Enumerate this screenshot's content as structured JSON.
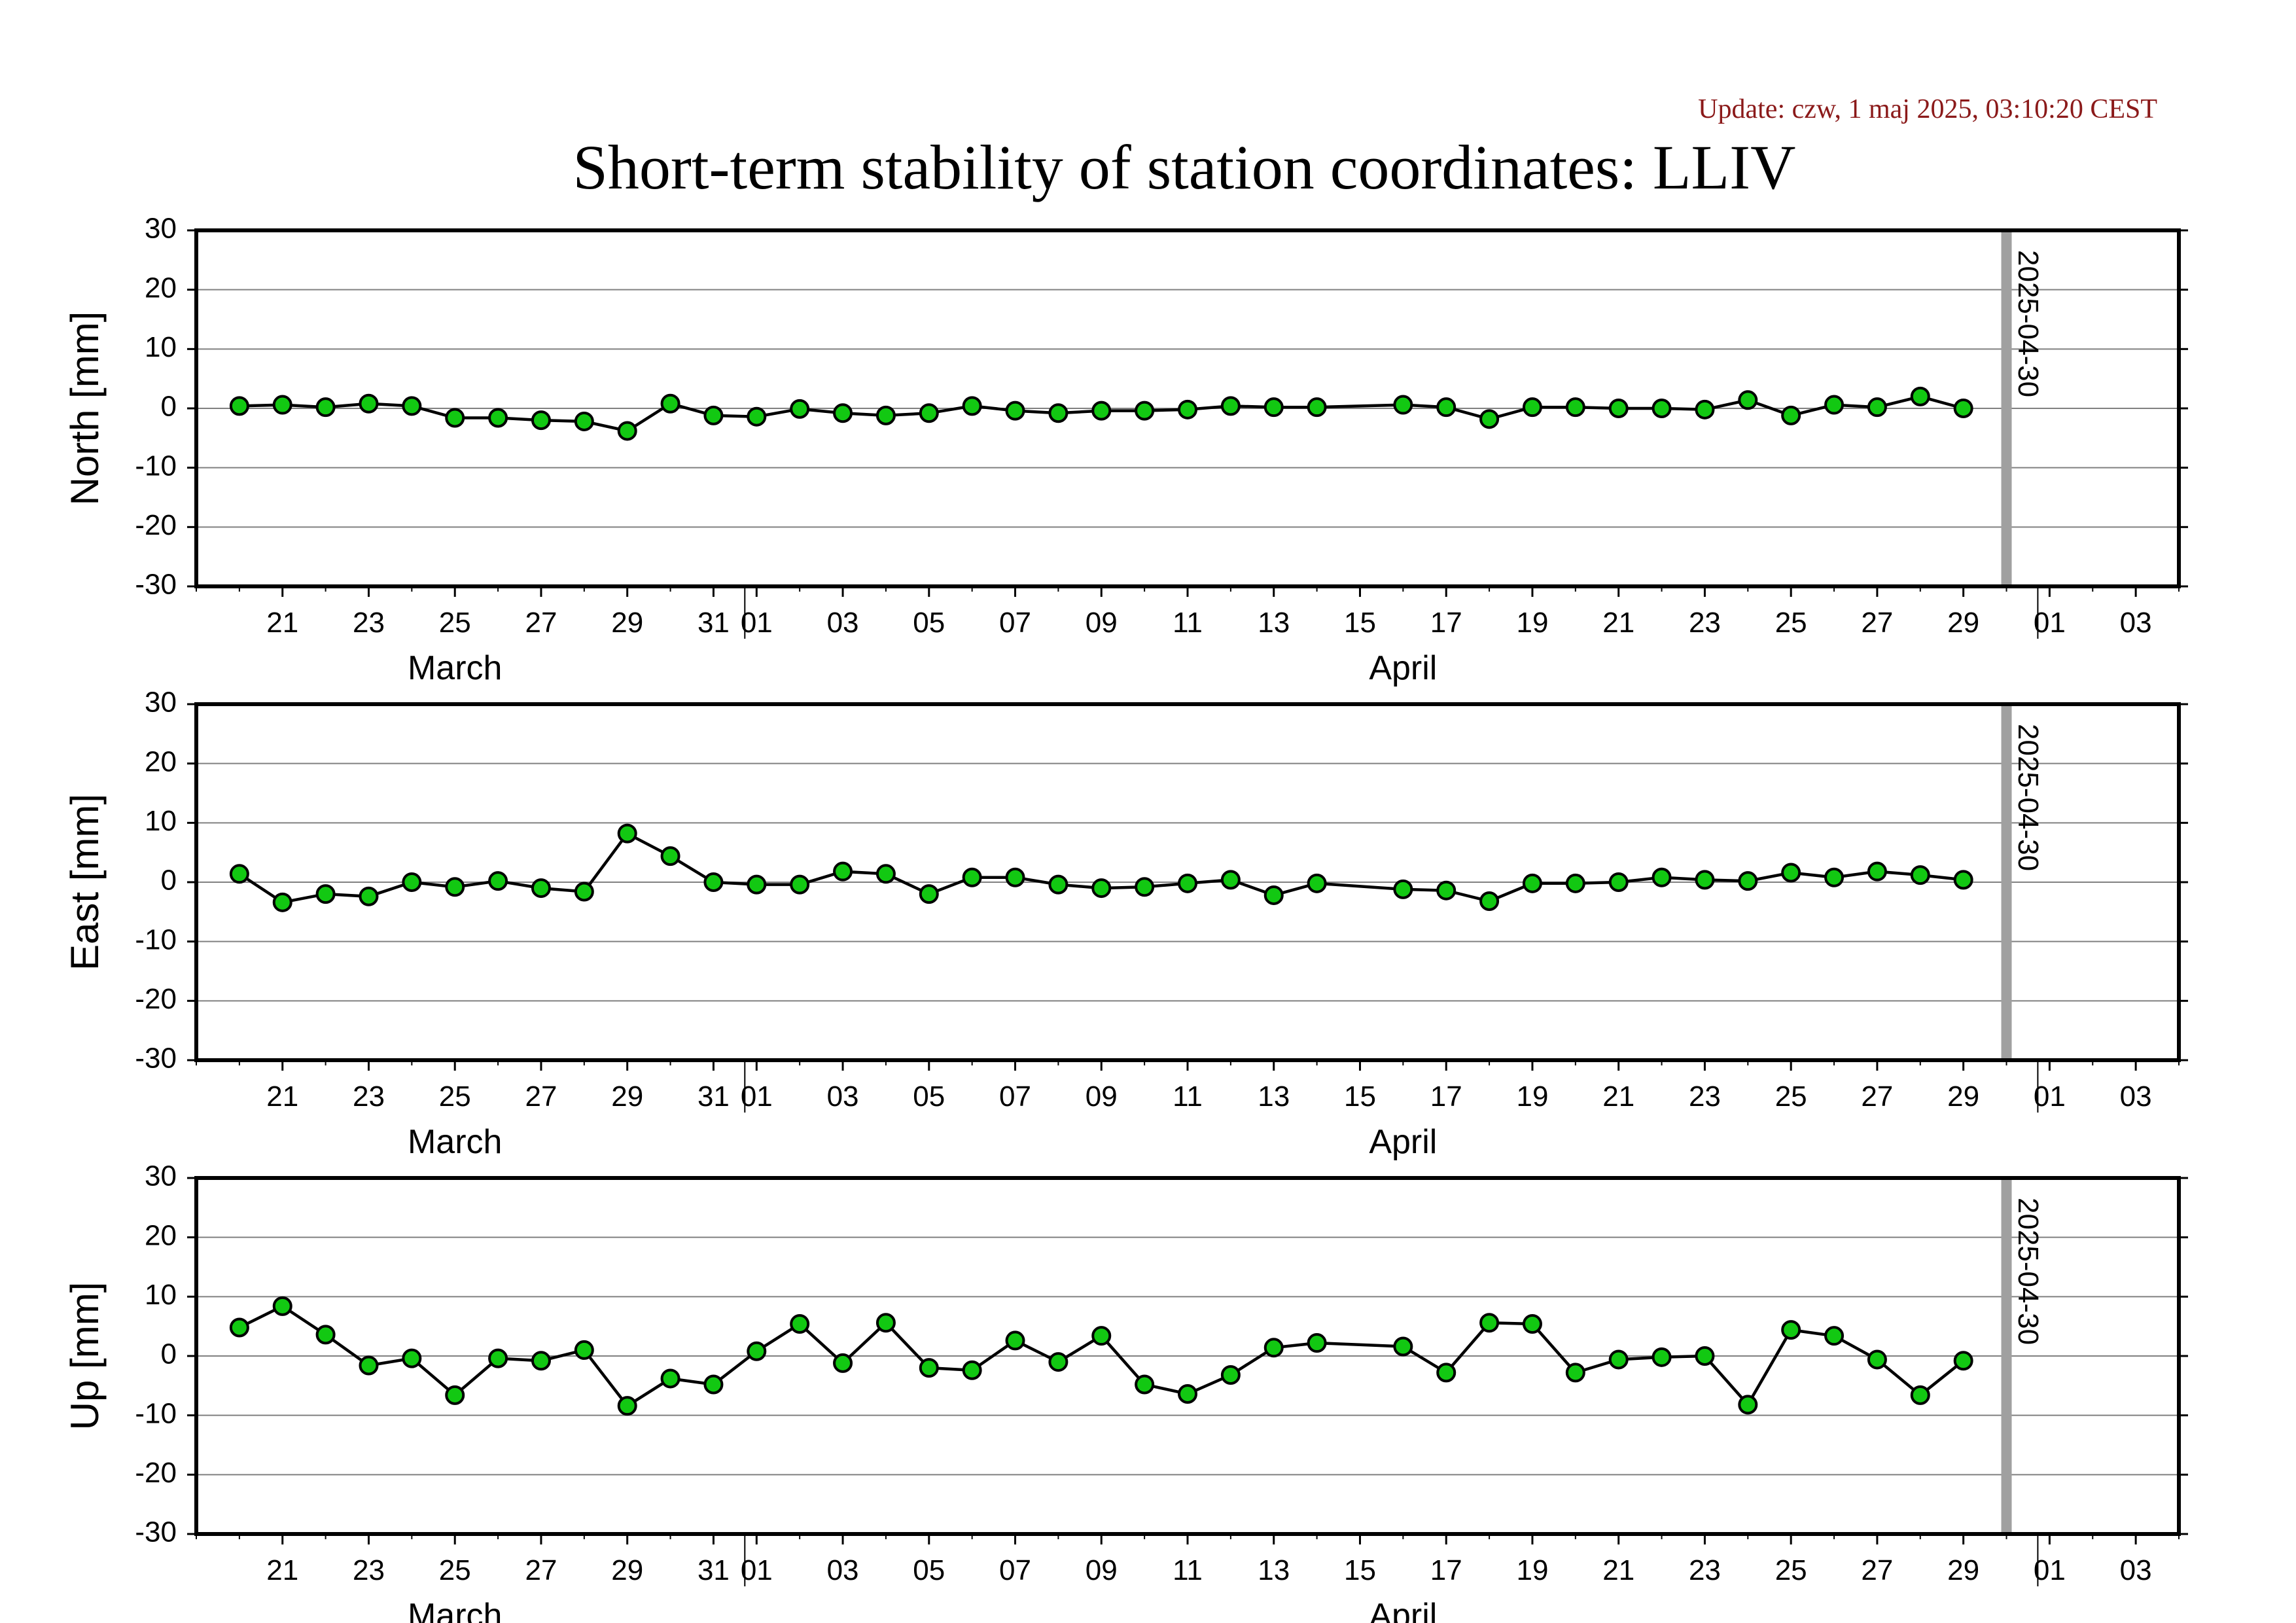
{
  "update_text": "Update: czw, 1 maj 2025, 03:10:20 CEST",
  "colors": {
    "update_text": "#8b1a1a",
    "marker_fill": "#12c812",
    "marker_stroke": "#000000",
    "line": "#000000",
    "gridline": "#808080",
    "marker_line": "#a0a0a0"
  },
  "chart_data": {
    "type": "line",
    "title": "Short-term stability of station coordinates: LLIV",
    "x_range": [
      "2025-03-19",
      "2025-05-04"
    ],
    "x_tick_labels": [
      {
        "date": "2025-03-21",
        "label": "21"
      },
      {
        "date": "2025-03-23",
        "label": "23"
      },
      {
        "date": "2025-03-25",
        "label": "25"
      },
      {
        "date": "2025-03-27",
        "label": "27"
      },
      {
        "date": "2025-03-29",
        "label": "29"
      },
      {
        "date": "2025-03-31",
        "label": "31"
      },
      {
        "date": "2025-04-01",
        "label": "01"
      },
      {
        "date": "2025-04-03",
        "label": "03"
      },
      {
        "date": "2025-04-05",
        "label": "05"
      },
      {
        "date": "2025-04-07",
        "label": "07"
      },
      {
        "date": "2025-04-09",
        "label": "09"
      },
      {
        "date": "2025-04-11",
        "label": "11"
      },
      {
        "date": "2025-04-13",
        "label": "13"
      },
      {
        "date": "2025-04-15",
        "label": "15"
      },
      {
        "date": "2025-04-17",
        "label": "17"
      },
      {
        "date": "2025-04-19",
        "label": "19"
      },
      {
        "date": "2025-04-21",
        "label": "21"
      },
      {
        "date": "2025-04-23",
        "label": "23"
      },
      {
        "date": "2025-04-25",
        "label": "25"
      },
      {
        "date": "2025-04-27",
        "label": "27"
      },
      {
        "date": "2025-04-29",
        "label": "29"
      },
      {
        "date": "2025-05-01",
        "label": "01"
      },
      {
        "date": "2025-05-03",
        "label": "03"
      }
    ],
    "month_labels": [
      {
        "date": "2025-03-25",
        "label": "March"
      },
      {
        "date": "2025-04-16",
        "label": "April"
      }
    ],
    "month_boundaries": [
      "2025-04-01",
      "2025-05-01"
    ],
    "marker_date": "2025-04-30",
    "marker_label": "2025-04-30",
    "y_range": [
      -30,
      30
    ],
    "y_ticks": [
      -30,
      -20,
      -10,
      0,
      10,
      20,
      30
    ],
    "panels": [
      {
        "ylabel": "North [mm]",
        "points": [
          {
            "x": "2025-03-20",
            "y": 0.4
          },
          {
            "x": "2025-03-21",
            "y": 0.6
          },
          {
            "x": "2025-03-22",
            "y": 0.2
          },
          {
            "x": "2025-03-23",
            "y": 0.8
          },
          {
            "x": "2025-03-24",
            "y": 0.4
          },
          {
            "x": "2025-03-25",
            "y": -1.6
          },
          {
            "x": "2025-03-26",
            "y": -1.6
          },
          {
            "x": "2025-03-27",
            "y": -2.0
          },
          {
            "x": "2025-03-28",
            "y": -2.2
          },
          {
            "x": "2025-03-29",
            "y": -3.8
          },
          {
            "x": "2025-03-30",
            "y": 0.8
          },
          {
            "x": "2025-03-31",
            "y": -1.2
          },
          {
            "x": "2025-04-01",
            "y": -1.4
          },
          {
            "x": "2025-04-02",
            "y": -0.1
          },
          {
            "x": "2025-04-03",
            "y": -0.8
          },
          {
            "x": "2025-04-04",
            "y": -1.2
          },
          {
            "x": "2025-04-05",
            "y": -0.8
          },
          {
            "x": "2025-04-06",
            "y": 0.4
          },
          {
            "x": "2025-04-07",
            "y": -0.4
          },
          {
            "x": "2025-04-08",
            "y": -0.8
          },
          {
            "x": "2025-04-09",
            "y": -0.4
          },
          {
            "x": "2025-04-10",
            "y": -0.4
          },
          {
            "x": "2025-04-11",
            "y": -0.2
          },
          {
            "x": "2025-04-12",
            "y": 0.4
          },
          {
            "x": "2025-04-13",
            "y": 0.2
          },
          {
            "x": "2025-04-14",
            "y": 0.2
          },
          {
            "x": "2025-04-16",
            "y": 0.6
          },
          {
            "x": "2025-04-17",
            "y": 0.2
          },
          {
            "x": "2025-04-18",
            "y": -1.8
          },
          {
            "x": "2025-04-19",
            "y": 0.2
          },
          {
            "x": "2025-04-20",
            "y": 0.2
          },
          {
            "x": "2025-04-21",
            "y": 0.0
          },
          {
            "x": "2025-04-22",
            "y": 0.0
          },
          {
            "x": "2025-04-23",
            "y": -0.2
          },
          {
            "x": "2025-04-24",
            "y": 1.4
          },
          {
            "x": "2025-04-25",
            "y": -1.2
          },
          {
            "x": "2025-04-26",
            "y": 0.6
          },
          {
            "x": "2025-04-27",
            "y": 0.2
          },
          {
            "x": "2025-04-28",
            "y": 2.0
          },
          {
            "x": "2025-04-29",
            "y": 0.0
          }
        ]
      },
      {
        "ylabel": "East [mm]",
        "points": [
          {
            "x": "2025-03-20",
            "y": 1.4
          },
          {
            "x": "2025-03-21",
            "y": -3.4
          },
          {
            "x": "2025-03-22",
            "y": -2.0
          },
          {
            "x": "2025-03-23",
            "y": -2.4
          },
          {
            "x": "2025-03-24",
            "y": 0.0
          },
          {
            "x": "2025-03-25",
            "y": -0.8
          },
          {
            "x": "2025-03-26",
            "y": 0.2
          },
          {
            "x": "2025-03-27",
            "y": -1.0
          },
          {
            "x": "2025-03-28",
            "y": -1.6
          },
          {
            "x": "2025-03-29",
            "y": 8.2
          },
          {
            "x": "2025-03-30",
            "y": 4.4
          },
          {
            "x": "2025-03-31",
            "y": 0.0
          },
          {
            "x": "2025-04-01",
            "y": -0.4
          },
          {
            "x": "2025-04-02",
            "y": -0.4
          },
          {
            "x": "2025-04-03",
            "y": 1.8
          },
          {
            "x": "2025-04-04",
            "y": 1.4
          },
          {
            "x": "2025-04-05",
            "y": -2.0
          },
          {
            "x": "2025-04-06",
            "y": 0.8
          },
          {
            "x": "2025-04-07",
            "y": 0.8
          },
          {
            "x": "2025-04-08",
            "y": -0.4
          },
          {
            "x": "2025-04-09",
            "y": -1.0
          },
          {
            "x": "2025-04-10",
            "y": -0.8
          },
          {
            "x": "2025-04-11",
            "y": -0.2
          },
          {
            "x": "2025-04-12",
            "y": 0.4
          },
          {
            "x": "2025-04-13",
            "y": -2.2
          },
          {
            "x": "2025-04-14",
            "y": -0.2
          },
          {
            "x": "2025-04-16",
            "y": -1.2
          },
          {
            "x": "2025-04-17",
            "y": -1.4
          },
          {
            "x": "2025-04-18",
            "y": -3.2
          },
          {
            "x": "2025-04-19",
            "y": -0.2
          },
          {
            "x": "2025-04-20",
            "y": -0.2
          },
          {
            "x": "2025-04-21",
            "y": 0.0
          },
          {
            "x": "2025-04-22",
            "y": 0.8
          },
          {
            "x": "2025-04-23",
            "y": 0.4
          },
          {
            "x": "2025-04-24",
            "y": 0.2
          },
          {
            "x": "2025-04-25",
            "y": 1.6
          },
          {
            "x": "2025-04-26",
            "y": 0.8
          },
          {
            "x": "2025-04-27",
            "y": 1.8
          },
          {
            "x": "2025-04-28",
            "y": 1.2
          },
          {
            "x": "2025-04-29",
            "y": 0.4
          }
        ]
      },
      {
        "ylabel": "Up [mm]",
        "points": [
          {
            "x": "2025-03-20",
            "y": 4.8
          },
          {
            "x": "2025-03-21",
            "y": 8.4
          },
          {
            "x": "2025-03-22",
            "y": 3.6
          },
          {
            "x": "2025-03-23",
            "y": -1.6
          },
          {
            "x": "2025-03-24",
            "y": -0.4
          },
          {
            "x": "2025-03-25",
            "y": -6.6
          },
          {
            "x": "2025-03-26",
            "y": -0.4
          },
          {
            "x": "2025-03-27",
            "y": -0.8
          },
          {
            "x": "2025-03-28",
            "y": 1.0
          },
          {
            "x": "2025-03-29",
            "y": -8.4
          },
          {
            "x": "2025-03-30",
            "y": -3.8
          },
          {
            "x": "2025-03-31",
            "y": -4.8
          },
          {
            "x": "2025-04-01",
            "y": 0.8
          },
          {
            "x": "2025-04-02",
            "y": 5.4
          },
          {
            "x": "2025-04-03",
            "y": -1.2
          },
          {
            "x": "2025-04-04",
            "y": 5.6
          },
          {
            "x": "2025-04-05",
            "y": -2.0
          },
          {
            "x": "2025-04-06",
            "y": -2.4
          },
          {
            "x": "2025-04-07",
            "y": 2.6
          },
          {
            "x": "2025-04-08",
            "y": -1.0
          },
          {
            "x": "2025-04-09",
            "y": 3.4
          },
          {
            "x": "2025-04-10",
            "y": -4.8
          },
          {
            "x": "2025-04-11",
            "y": -6.4
          },
          {
            "x": "2025-04-12",
            "y": -3.2
          },
          {
            "x": "2025-04-13",
            "y": 1.4
          },
          {
            "x": "2025-04-14",
            "y": 2.2
          },
          {
            "x": "2025-04-16",
            "y": 1.6
          },
          {
            "x": "2025-04-17",
            "y": -2.8
          },
          {
            "x": "2025-04-18",
            "y": 5.6
          },
          {
            "x": "2025-04-19",
            "y": 5.4
          },
          {
            "x": "2025-04-20",
            "y": -2.8
          },
          {
            "x": "2025-04-21",
            "y": -0.6
          },
          {
            "x": "2025-04-22",
            "y": -0.2
          },
          {
            "x": "2025-04-23",
            "y": 0.0
          },
          {
            "x": "2025-04-24",
            "y": -8.2
          },
          {
            "x": "2025-04-25",
            "y": 4.4
          },
          {
            "x": "2025-04-26",
            "y": 3.4
          },
          {
            "x": "2025-04-27",
            "y": -0.6
          },
          {
            "x": "2025-04-28",
            "y": -6.6
          },
          {
            "x": "2025-04-29",
            "y": -0.8
          }
        ]
      }
    ]
  }
}
